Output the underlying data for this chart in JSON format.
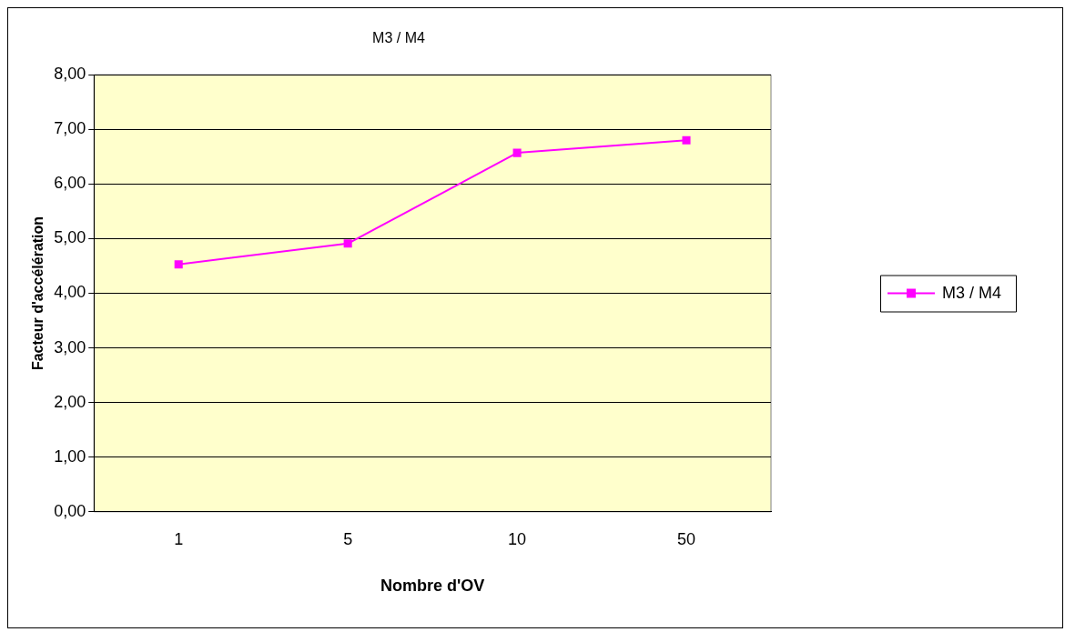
{
  "chart_data": {
    "type": "line",
    "title": "M3 / M4",
    "xlabel": "Nombre d'OV",
    "ylabel": "Facteur d'accélération",
    "categories": [
      "1",
      "5",
      "10",
      "50"
    ],
    "series": [
      {
        "name": "M3 / M4",
        "color": "#ff00ff",
        "values": [
          4.53,
          4.91,
          6.57,
          6.8
        ]
      }
    ],
    "ylim": [
      0,
      8
    ],
    "yticks": [
      {
        "value": 0,
        "label": "0,00"
      },
      {
        "value": 1,
        "label": "1,00"
      },
      {
        "value": 2,
        "label": "2,00"
      },
      {
        "value": 3,
        "label": "3,00"
      },
      {
        "value": 4,
        "label": "4,00"
      },
      {
        "value": 5,
        "label": "5,00"
      },
      {
        "value": 6,
        "label": "6,00"
      },
      {
        "value": 7,
        "label": "7,00"
      },
      {
        "value": 8,
        "label": "8,00"
      }
    ],
    "grid": "y",
    "legend": "right",
    "marker": "square",
    "line_style": "solid"
  }
}
